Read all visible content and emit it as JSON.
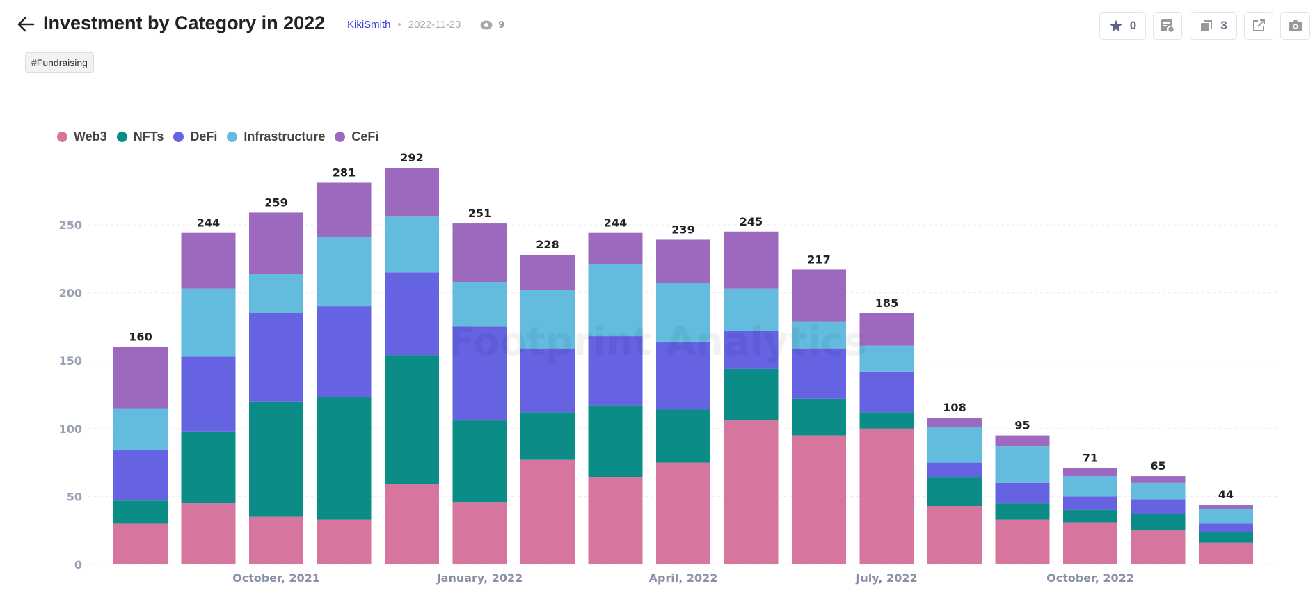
{
  "header": {
    "title": "Investment by Category in 2022",
    "author": "KikiSmith",
    "separator": "•",
    "date": "2022-11-23",
    "views": "9",
    "tag": "#Fundraising",
    "icons": {
      "back": "arrow-left-icon",
      "views": "eye-icon"
    }
  },
  "toolbar": {
    "favorite_count": "0",
    "copies_count": "3",
    "icons": [
      "star-icon",
      "query-icon",
      "copy-icon",
      "external-link-icon",
      "camera-icon"
    ]
  },
  "watermark": "Footprint Analytics",
  "chart_data": {
    "type": "bar",
    "stacked": true,
    "categories": [
      "August, 2021",
      "September, 2021",
      "October, 2021",
      "November, 2021",
      "December, 2021",
      "January, 2022",
      "February, 2022",
      "March, 2022",
      "April, 2022",
      "May, 2022",
      "June, 2022",
      "July, 2022",
      "August, 2022",
      "September, 2022",
      "October, 2022",
      "November, 2022",
      "December, 2022"
    ],
    "x_tick_labels": [
      "October, 2021",
      "January, 2022",
      "April, 2022",
      "July, 2022",
      "October, 2022"
    ],
    "series": [
      {
        "name": "Web3",
        "color": "#d6769e",
        "values": [
          30,
          45,
          35,
          33,
          59,
          46,
          77,
          64,
          75,
          106,
          95,
          100,
          43,
          33,
          31,
          25,
          16
        ]
      },
      {
        "name": "NFTs",
        "color": "#0b8c87",
        "values": [
          17,
          53,
          85,
          90,
          95,
          60,
          35,
          53,
          39,
          38,
          27,
          12,
          21,
          12,
          9,
          12,
          8
        ]
      },
      {
        "name": "DeFi",
        "color": "#6563e2",
        "values": [
          37,
          55,
          65,
          67,
          61,
          69,
          47,
          51,
          50,
          28,
          37,
          30,
          11,
          15,
          10,
          11,
          6
        ]
      },
      {
        "name": "Infrastructure",
        "color": "#63bbde",
        "values": [
          31,
          50,
          29,
          51,
          41,
          33,
          43,
          53,
          43,
          31,
          20,
          19,
          26,
          27,
          15,
          12,
          11
        ]
      },
      {
        "name": "CeFi",
        "color": "#9c69bf",
        "values": [
          45,
          41,
          45,
          40,
          36,
          43,
          26,
          23,
          32,
          42,
          38,
          24,
          7,
          8,
          6,
          5,
          3
        ]
      }
    ],
    "totals": [
      160,
      244,
      259,
      281,
      292,
      251,
      228,
      244,
      239,
      245,
      217,
      185,
      108,
      95,
      71,
      65,
      44
    ],
    "y_ticks": [
      0,
      50,
      100,
      150,
      200,
      250
    ],
    "ylim": [
      0,
      300
    ],
    "grid": true,
    "legend_position": "top-left",
    "title": "",
    "xlabel": "",
    "ylabel": ""
  }
}
